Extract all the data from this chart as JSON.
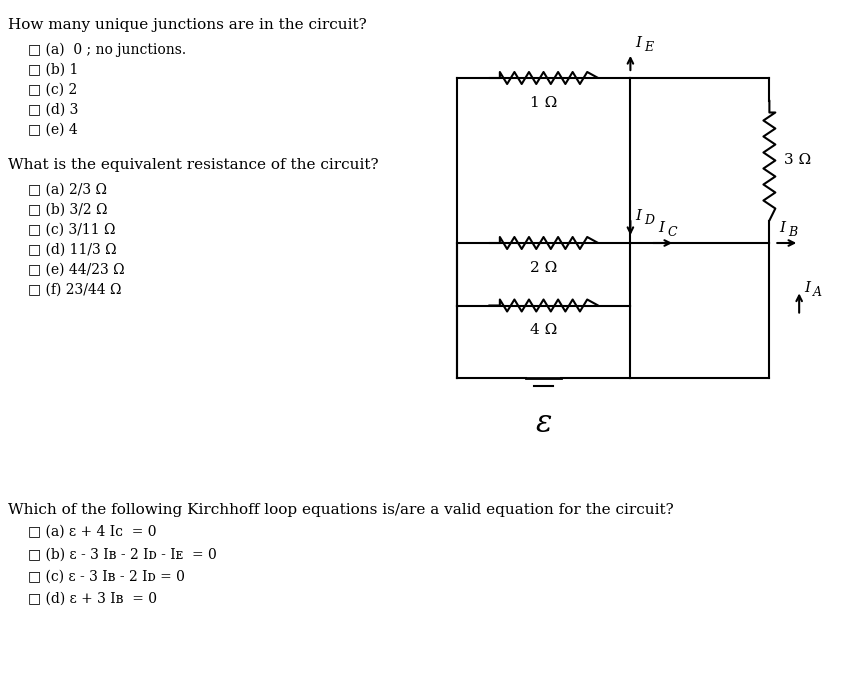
{
  "bg_color": "#ffffff",
  "text_color": "#000000",
  "title1": "How many unique junctions are in the circuit?",
  "q1_options": [
    "(a)  0 ; no junctions.",
    "(b) 1",
    "(c) 2",
    "(d) 3",
    "(e) 4"
  ],
  "title2": "What is the equivalent resistance of the circuit?",
  "q2_options": [
    "(a) 2/3 Ω",
    "(b) 3/2 Ω",
    "(c) 3/11 Ω",
    "(d) 11/3 Ω",
    "(e) 44/23 Ω",
    "(f) 23/44 Ω"
  ],
  "title3": "Which of the following Kirchhoff loop equations is/are a valid equation for the circuit?",
  "q3_options": [
    "(a) ε + 4 Iᴄ  = 0",
    "(b) ε - 3 Iʙ - 2 Iᴅ - Iᴇ  = 0",
    "(c) ε - 3 Iʙ - 2 Iᴅ = 0",
    "(d) ε + 3 Iʙ  = 0"
  ],
  "font_size_title": 11,
  "font_size_option": 10,
  "font_size_circuit": 11
}
